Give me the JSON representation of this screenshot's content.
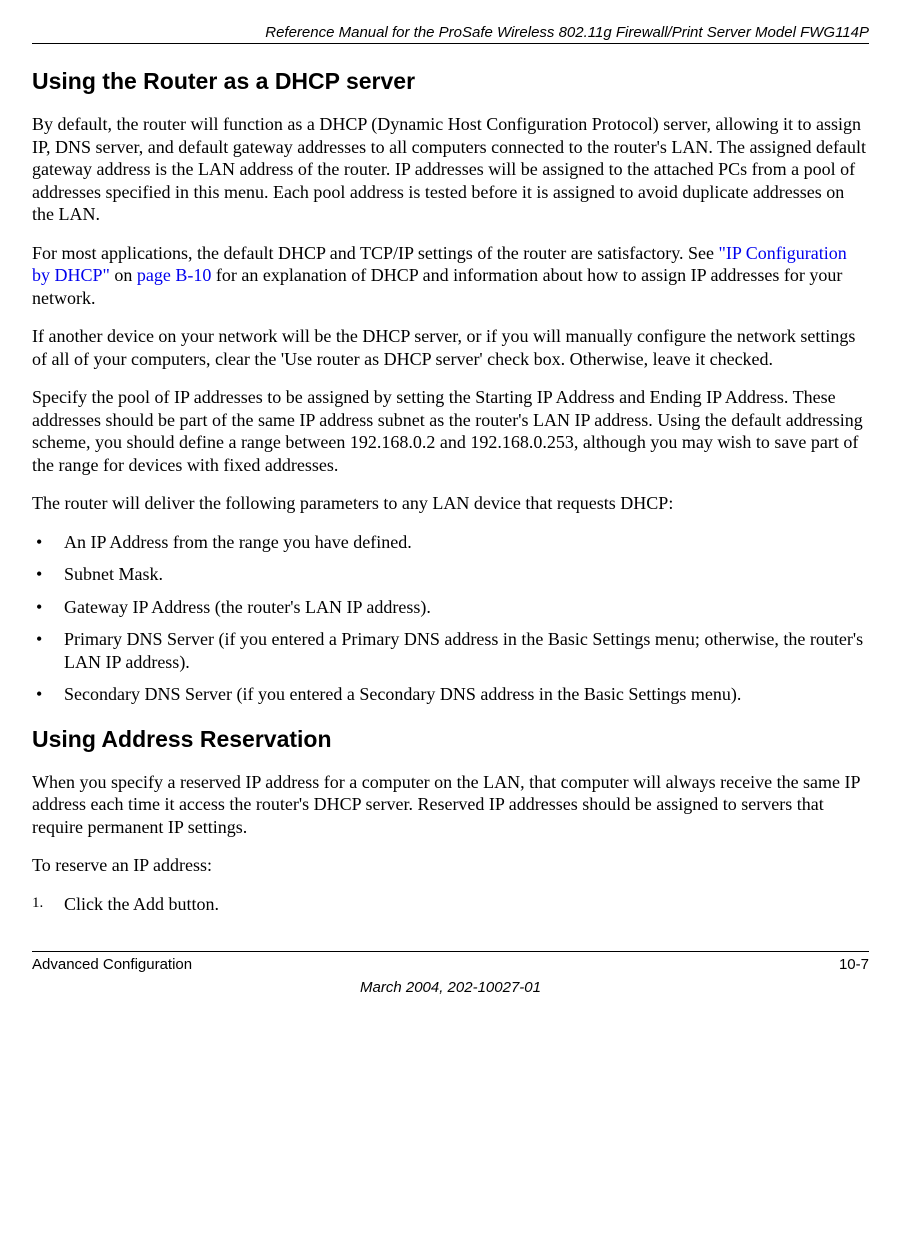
{
  "running_header": "Reference Manual for the ProSafe Wireless 802.11g  Firewall/Print Server Model FWG114P",
  "sections": {
    "dhcp": {
      "title": "Using the Router as a DHCP server",
      "p1": "By default, the router will function as a DHCP (Dynamic Host Configuration Protocol) server, allowing it to assign IP, DNS server, and default gateway addresses to all computers connected to the router's LAN. The assigned default gateway address is the LAN address of the router. IP addresses will be assigned to the attached PCs from a pool of addresses specified in this menu. Each pool address is tested before it is assigned to avoid duplicate addresses on the LAN.",
      "p2_pre": "For most applications, the default DHCP and TCP/IP settings of the router are satisfactory. See ",
      "p2_link1": "\"IP Configuration by DHCP\"",
      "p2_mid": " on ",
      "p2_link2": "page B-10",
      "p2_post": " for an explanation of DHCP and information about how to assign IP addresses for your network.",
      "p3": "If another device on your network will be the DHCP server, or if you will manually configure the network settings of all of your computers, clear the 'Use router as DHCP server' check box. Otherwise, leave it checked.",
      "p4": "Specify the pool of IP addresses to be assigned by setting the Starting IP Address and Ending IP Address. These addresses should be part of the same IP address subnet as the router's LAN IP address. Using the default addressing scheme, you should define a range between 192.168.0.2 and 192.168.0.253, although you may wish to save part of the range for devices with fixed addresses.",
      "p5": "The router will deliver the following parameters to any LAN device that requests DHCP:",
      "bullets": [
        "An IP Address from the range you have defined.",
        "Subnet Mask.",
        "Gateway IP Address (the router's LAN IP address).",
        "Primary DNS Server (if you entered a Primary DNS address in the Basic Settings menu; otherwise, the router's LAN IP address).",
        "Secondary DNS Server (if you entered a Secondary DNS address in the Basic Settings menu)."
      ]
    },
    "reservation": {
      "title": "Using Address Reservation",
      "p1": "When you specify a reserved IP address for a computer on the LAN, that computer will always receive the same IP address each time it access the router's DHCP server. Reserved IP addresses should be assigned to servers that require permanent IP settings.",
      "p2": "To reserve an IP address:",
      "steps": [
        "Click the Add button."
      ]
    }
  },
  "footer": {
    "left": "Advanced Configuration",
    "right": "10-7",
    "center": "March 2004, 202-10027-01"
  },
  "colors": {
    "text": "#000000",
    "link": "#0000ee",
    "background": "#ffffff",
    "rule": "#000000"
  },
  "typography": {
    "body_font": "Times New Roman",
    "heading_font": "Arial",
    "body_size_pt": 13,
    "heading_size_pt": 17,
    "running_header_size_pt": 11
  }
}
